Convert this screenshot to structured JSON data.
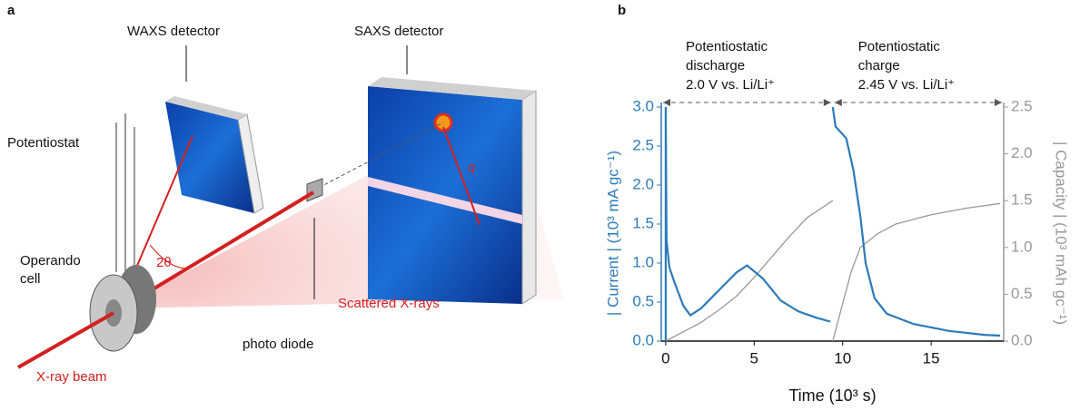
{
  "panel_a": {
    "letter": "a",
    "labels": {
      "waxs": "WAXS detector",
      "saxs": "SAXS detector",
      "potentiostat": "Potentiostat",
      "cell": [
        "Operando",
        "cell"
      ],
      "angle": "2θ",
      "q": "q",
      "diode": "photo diode",
      "scattered": "Scattered X-rays",
      "beam": "X-ray beam"
    }
  },
  "chart_data": {
    "type": "line",
    "letter": "b",
    "annotations": [
      [
        "Potentiostatic",
        "discharge",
        "2.0 V vs. Li/Li⁺"
      ],
      [
        "Potentiostatic",
        "charge",
        "2.45 V vs. Li/Li⁺"
      ]
    ],
    "x_label": "Time (10³ s)",
    "y_label": "| Current | (10³ mA gc⁻¹)",
    "y2_label": "| Capacity | (10³ mAh gc⁻¹)",
    "xlim": [
      -0.25,
      19.1
    ],
    "xticks": [
      0,
      5,
      10,
      15
    ],
    "ylim": [
      0,
      3.0
    ],
    "yticks": [
      {
        "value": 0,
        "label": "0.0"
      },
      {
        "value": 0.5,
        "label": "0.5"
      },
      {
        "value": 1,
        "label": "1.0"
      },
      {
        "value": 1.5,
        "label": "1.5"
      },
      {
        "value": 2,
        "label": "2.0"
      },
      {
        "value": 2.5,
        "label": "2.5"
      },
      {
        "value": 3,
        "label": "3.0"
      }
    ],
    "y2lim": [
      0,
      2.5
    ],
    "y2ticks": [
      {
        "value": 0,
        "label": "0.0"
      },
      {
        "value": 0.5,
        "label": "0.5"
      },
      {
        "value": 1,
        "label": "1.0"
      },
      {
        "value": 1.5,
        "label": "1.5"
      },
      {
        "value": 2,
        "label": "2.0"
      },
      {
        "value": 2.5,
        "label": "2.5"
      }
    ],
    "series": [
      {
        "name": "Current",
        "color": "#2b7bba",
        "axis": "y",
        "x": [
          0,
          0,
          0.05,
          0.2,
          0.5,
          1.0,
          1.4,
          2,
          3,
          4,
          4.6,
          5.5,
          6.5,
          7.5,
          8.5,
          9.3,
          9.44,
          9.44,
          9.6,
          10.2,
          10.6,
          11,
          11.3,
          11.8,
          12.5,
          14,
          16,
          18,
          18.9
        ],
        "values": [
          0,
          3.0,
          1.3,
          0.95,
          0.75,
          0.45,
          0.33,
          0.42,
          0.65,
          0.88,
          0.97,
          0.8,
          0.52,
          0.38,
          0.3,
          0.25,
          null,
          3.0,
          2.75,
          2.6,
          2.2,
          1.6,
          1.0,
          0.55,
          0.35,
          0.22,
          0.13,
          0.08,
          0.07
        ]
      },
      {
        "name": "Capacity",
        "color": "#999999",
        "axis": "y2",
        "x": [
          0,
          1,
          2,
          3,
          4,
          5,
          6,
          7,
          8,
          9.44,
          9.44,
          9.44,
          10,
          10.5,
          11,
          12,
          13,
          15,
          17,
          18.9
        ],
        "values": [
          0,
          0.1,
          0.2,
          0.33,
          0.48,
          0.68,
          0.9,
          1.12,
          1.32,
          1.5,
          null,
          0,
          0.4,
          0.75,
          1.0,
          1.15,
          1.25,
          1.35,
          1.42,
          1.47
        ]
      }
    ]
  }
}
